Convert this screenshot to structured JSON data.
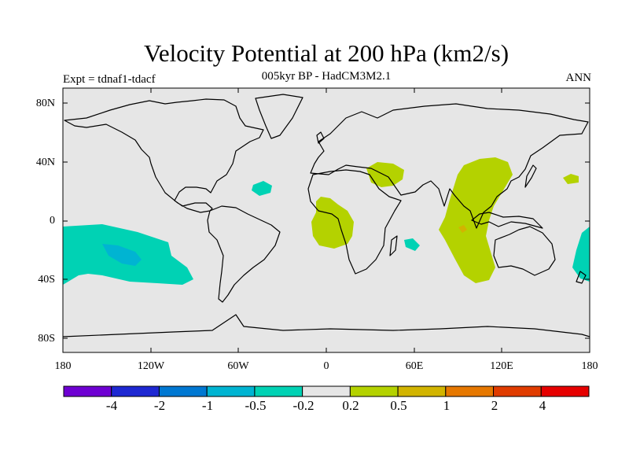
{
  "title": "Velocity Potential at 200 hPa (km2/s)",
  "subtitle": "005kyr BP - HadCM3M2.1",
  "experiment": "Expt = tdnaf1-tdacf",
  "season": "ANN",
  "map": {
    "projection": "cylindrical-equidistant",
    "lon_range": [
      -180,
      180
    ],
    "lat_range": [
      -90,
      90
    ],
    "background_color": "#e6e6e6",
    "coastline_color": "#000000",
    "lat_tick_labels": [
      "80N",
      "40N",
      "0",
      "40S",
      "80S"
    ],
    "lon_tick_labels": [
      "180",
      "120W",
      "60W",
      "0",
      "60E",
      "120E",
      "180"
    ]
  },
  "regions": [
    {
      "name": "central-south-pacific",
      "level": "-0.5 to -0.2",
      "color": "#00d2b4"
    },
    {
      "name": "south-pacific-core",
      "level": "-1 to -0.5",
      "color": "#00b4d2"
    },
    {
      "name": "north-atlantic",
      "level": "-0.5 to -0.2",
      "color": "#00d2b4"
    },
    {
      "name": "madagascar-east",
      "level": "-0.5 to -0.2",
      "color": "#00d2b4"
    },
    {
      "name": "dateline-southwest-pacific",
      "level": "-0.5 to -0.2",
      "color": "#00d2b4"
    },
    {
      "name": "west-africa",
      "level": "0.2 to 0.5",
      "color": "#b4d200"
    },
    {
      "name": "arabia",
      "level": "0.2 to 0.5",
      "color": "#b4d200"
    },
    {
      "name": "east-asia-indian-ocean",
      "level": "0.2 to 0.5",
      "color": "#b4d200"
    },
    {
      "name": "indian-ocean-core",
      "level": "0.5 to 1",
      "color": "#d2b400"
    },
    {
      "name": "northwest-pacific",
      "level": "0.2 to 0.5",
      "color": "#b4d200"
    }
  ],
  "colorbar": {
    "colors": [
      "#6e00d2",
      "#1e28d2",
      "#0078d2",
      "#00b4d2",
      "#00d2b4",
      "#e6e6e6",
      "#b4d200",
      "#d2b400",
      "#e67800",
      "#e03c00",
      "#e60000"
    ],
    "labels": [
      "-4",
      "-2",
      "-1",
      "-0.5",
      "-0.2",
      "0.2",
      "0.5",
      "1",
      "2",
      "4"
    ]
  }
}
